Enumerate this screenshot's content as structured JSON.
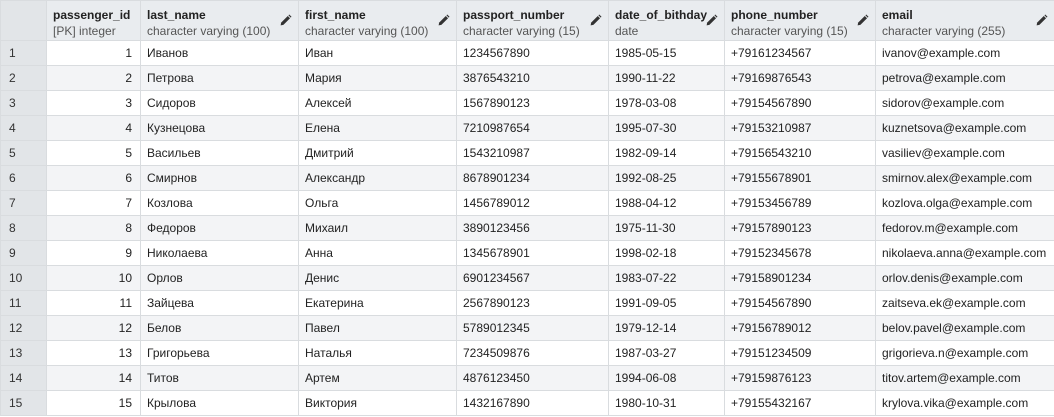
{
  "columns": [
    {
      "name": "passenger_id",
      "type": "[PK] integer"
    },
    {
      "name": "last_name",
      "type": "character varying (100)"
    },
    {
      "name": "first_name",
      "type": "character varying (100)"
    },
    {
      "name": "passport_number",
      "type": "character varying (15)"
    },
    {
      "name": "date_of_bithday",
      "type": "date"
    },
    {
      "name": "phone_number",
      "type": "character varying (15)"
    },
    {
      "name": "email",
      "type": "character varying (255)"
    }
  ],
  "icons": {
    "edit": "pencil-icon"
  },
  "rows": [
    {
      "n": "1",
      "passenger_id": "1",
      "last_name": "Иванов",
      "first_name": "Иван",
      "passport_number": "1234567890",
      "date_of_bithday": "1985-05-15",
      "phone_number": "+79161234567",
      "email": "ivanov@example.com"
    },
    {
      "n": "2",
      "passenger_id": "2",
      "last_name": "Петрова",
      "first_name": "Мария",
      "passport_number": "3876543210",
      "date_of_bithday": "1990-11-22",
      "phone_number": "+79169876543",
      "email": "petrova@example.com"
    },
    {
      "n": "3",
      "passenger_id": "3",
      "last_name": "Сидоров",
      "first_name": "Алексей",
      "passport_number": "1567890123",
      "date_of_bithday": "1978-03-08",
      "phone_number": "+79154567890",
      "email": "sidorov@example.com"
    },
    {
      "n": "4",
      "passenger_id": "4",
      "last_name": "Кузнецова",
      "first_name": "Елена",
      "passport_number": "7210987654",
      "date_of_bithday": "1995-07-30",
      "phone_number": "+79153210987",
      "email": "kuznetsova@example.com"
    },
    {
      "n": "5",
      "passenger_id": "5",
      "last_name": "Васильев",
      "first_name": "Дмитрий",
      "passport_number": "1543210987",
      "date_of_bithday": "1982-09-14",
      "phone_number": "+79156543210",
      "email": "vasiliev@example.com"
    },
    {
      "n": "6",
      "passenger_id": "6",
      "last_name": "Смирнов",
      "first_name": "Александр",
      "passport_number": "8678901234",
      "date_of_bithday": "1992-08-25",
      "phone_number": "+79155678901",
      "email": "smirnov.alex@example.com"
    },
    {
      "n": "7",
      "passenger_id": "7",
      "last_name": "Козлова",
      "first_name": "Ольга",
      "passport_number": "1456789012",
      "date_of_bithday": "1988-04-12",
      "phone_number": "+79153456789",
      "email": "kozlova.olga@example.com"
    },
    {
      "n": "8",
      "passenger_id": "8",
      "last_name": "Федоров",
      "first_name": "Михаил",
      "passport_number": "3890123456",
      "date_of_bithday": "1975-11-30",
      "phone_number": "+79157890123",
      "email": "fedorov.m@example.com"
    },
    {
      "n": "9",
      "passenger_id": "9",
      "last_name": "Николаева",
      "first_name": "Анна",
      "passport_number": "1345678901",
      "date_of_bithday": "1998-02-18",
      "phone_number": "+79152345678",
      "email": "nikolaeva.anna@example.com"
    },
    {
      "n": "10",
      "passenger_id": "10",
      "last_name": "Орлов",
      "first_name": "Денис",
      "passport_number": "6901234567",
      "date_of_bithday": "1983-07-22",
      "phone_number": "+79158901234",
      "email": "orlov.denis@example.com"
    },
    {
      "n": "11",
      "passenger_id": "11",
      "last_name": "Зайцева",
      "first_name": "Екатерина",
      "passport_number": "2567890123",
      "date_of_bithday": "1991-09-05",
      "phone_number": "+79154567890",
      "email": "zaitseva.ek@example.com"
    },
    {
      "n": "12",
      "passenger_id": "12",
      "last_name": "Белов",
      "first_name": "Павел",
      "passport_number": "5789012345",
      "date_of_bithday": "1979-12-14",
      "phone_number": "+79156789012",
      "email": "belov.pavel@example.com"
    },
    {
      "n": "13",
      "passenger_id": "13",
      "last_name": "Григорьева",
      "first_name": "Наталья",
      "passport_number": "7234509876",
      "date_of_bithday": "1987-03-27",
      "phone_number": "+79151234509",
      "email": "grigorieva.n@example.com"
    },
    {
      "n": "14",
      "passenger_id": "14",
      "last_name": "Титов",
      "first_name": "Артем",
      "passport_number": "4876123450",
      "date_of_bithday": "1994-06-08",
      "phone_number": "+79159876123",
      "email": "titov.artem@example.com"
    },
    {
      "n": "15",
      "passenger_id": "15",
      "last_name": "Крылова",
      "first_name": "Виктория",
      "passport_number": "1432167890",
      "date_of_bithday": "1980-10-31",
      "phone_number": "+79155432167",
      "email": "krylova.vika@example.com"
    }
  ]
}
